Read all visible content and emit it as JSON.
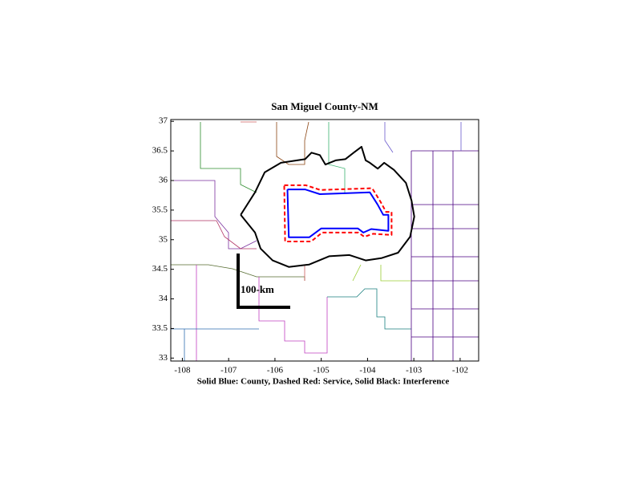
{
  "chart_data": {
    "type": "map",
    "title": "San Miguel County-NM",
    "xlabel": "Solid Blue: County, Dashed Red: Service, Solid Black: Interference",
    "annotation": "100-km",
    "xlim": [
      -108.25,
      -101.6
    ],
    "ylim": [
      32.95,
      37.03
    ],
    "xticks": [
      -108,
      -107,
      -106,
      -105,
      -104,
      -103,
      -102
    ],
    "yticks": [
      33,
      33.5,
      34,
      34.5,
      35,
      35.5,
      36,
      36.5,
      37
    ],
    "series": [
      {
        "color": "#0000ff",
        "line_style": "solid",
        "x": [
          -105.73,
          -105.35,
          -105.03,
          -103.95,
          -103.78,
          -103.66,
          -103.55,
          -103.55,
          -103.92,
          -104.09,
          -104.21,
          -105.0,
          -105.26,
          -105.7,
          -105.73
        ],
        "y": [
          35.85,
          35.85,
          35.77,
          35.8,
          35.59,
          35.42,
          35.42,
          35.15,
          35.18,
          35.12,
          35.19,
          35.19,
          35.04,
          35.04,
          35.85
        ]
      },
      {
        "color": "#ff0000",
        "line_style": "dashed",
        "x": [
          -105.8,
          -105.33,
          -105.02,
          -103.9,
          -103.72,
          -103.6,
          -103.48,
          -103.48,
          -103.88,
          -104.07,
          -104.2,
          -104.98,
          -105.22,
          -105.78,
          -105.8
        ],
        "y": [
          35.92,
          35.92,
          35.84,
          35.87,
          35.64,
          35.47,
          35.47,
          35.08,
          35.1,
          35.05,
          35.12,
          35.12,
          34.97,
          34.97,
          35.92
        ]
      },
      {
        "color": "#000000",
        "line_style": "solid",
        "x": [
          -106.74,
          -106.43,
          -106.22,
          -105.87,
          -105.35,
          -105.21,
          -105.03,
          -104.91,
          -104.69,
          -104.48,
          -104.3,
          -104.13,
          -104.04,
          -103.95,
          -103.78,
          -103.64,
          -103.43,
          -103.17,
          -103.05,
          -102.99,
          -103.08,
          -103.34,
          -103.69,
          -104.04,
          -104.39,
          -104.83,
          -105.26,
          -105.7,
          -106.05,
          -106.31,
          -106.43,
          -106.74
        ],
        "y": [
          35.42,
          35.8,
          36.14,
          36.3,
          36.36,
          36.47,
          36.43,
          36.27,
          36.34,
          36.36,
          36.47,
          36.57,
          36.34,
          36.3,
          36.2,
          36.3,
          36.18,
          35.96,
          35.66,
          35.39,
          35.05,
          34.78,
          34.69,
          34.65,
          34.74,
          34.72,
          34.58,
          34.54,
          34.65,
          34.85,
          35.12,
          35.42
        ]
      }
    ]
  }
}
